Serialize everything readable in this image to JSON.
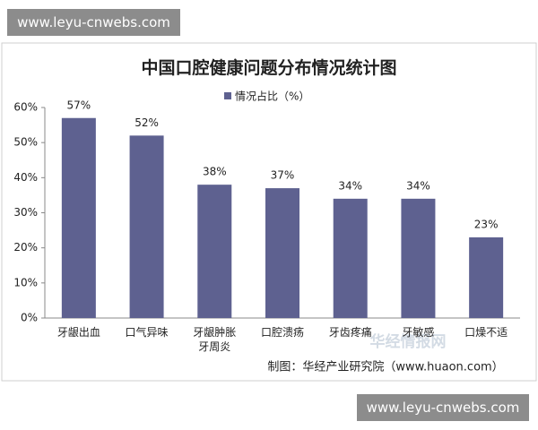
{
  "watermark_top": "www.leyu-cnwebs.com",
  "watermark_bottom": "www.leyu-cnwebs.com",
  "watermark_logo": "华经情报网",
  "chart_data": {
    "type": "bar",
    "title": "中国口腔健康问题分布情况统计图",
    "series": [
      {
        "name": "情况占比（%）",
        "color": "#5e6190",
        "values": [
          57,
          52,
          38,
          37,
          34,
          34,
          23
        ],
        "value_labels": [
          "57%",
          "52%",
          "38%",
          "37%",
          "34%",
          "34%",
          "23%"
        ]
      }
    ],
    "categories": [
      "牙龈出血",
      "口气异味",
      "牙龈肿胀\n牙周炎",
      "口腔溃疡",
      "牙齿疼痛",
      "牙敏感",
      "口燥不适"
    ],
    "ylim": [
      0,
      60
    ],
    "yticks": [
      {
        "value": 0,
        "label": "0%"
      },
      {
        "value": 10,
        "label": "10%"
      },
      {
        "value": 20,
        "label": "20%"
      },
      {
        "value": 30,
        "label": "30%"
      },
      {
        "value": 40,
        "label": "40%"
      },
      {
        "value": 50,
        "label": "50%"
      },
      {
        "value": 60,
        "label": "60%"
      }
    ],
    "source": "制图：华经产业研究院（www.huaon.com）"
  }
}
